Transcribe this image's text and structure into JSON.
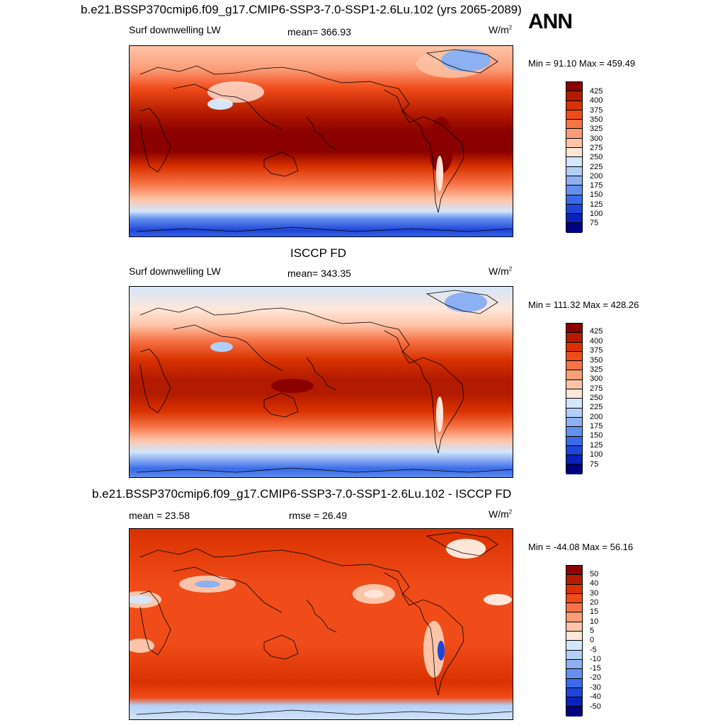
{
  "panel1": {
    "title": "b.e21.BSSP370cmip6.f09_g17.CMIP6-SSP3-7.0-SSP1-2.6Lu.102 (yrs 2065-2089)",
    "season": "ANN",
    "left": "Surf downwelling LW",
    "center": "mean= 366.93",
    "units_base": "W/m",
    "units_exp": "2",
    "minmax": "Min =  91.10 Max = 459.49",
    "colorbar_labels": [
      "425",
      "400",
      "375",
      "350",
      "325",
      "300",
      "275",
      "250",
      "225",
      "200",
      "175",
      "150",
      "125",
      "100",
      "75"
    ]
  },
  "panel2": {
    "title": "ISCCP FD",
    "left": "Surf downwelling LW",
    "center": "mean= 343.35",
    "units_base": "W/m",
    "units_exp": "2",
    "minmax": "Min = 111.32 Max = 428.26",
    "colorbar_labels": [
      "425",
      "400",
      "375",
      "350",
      "325",
      "300",
      "275",
      "250",
      "225",
      "200",
      "175",
      "150",
      "125",
      "100",
      "75"
    ]
  },
  "panel3": {
    "title": "b.e21.BSSP370cmip6.f09_g17.CMIP6-SSP3-7.0-SSP1-2.6Lu.102 - ISCCP FD",
    "left": "mean =  23.58",
    "center": "rmse =  26.49",
    "units_base": "W/m",
    "units_exp": "2",
    "minmax": "Min = -44.08 Max =  56.16",
    "colorbar_labels": [
      "50",
      "40",
      "30",
      "20",
      "15",
      "10",
      "5",
      "0",
      "-5",
      "-10",
      "-15",
      "-20",
      "-30",
      "-40",
      "-50"
    ]
  },
  "colors": {
    "scale": [
      "#8b0000",
      "#b31b00",
      "#d93200",
      "#f04c1a",
      "#f77447",
      "#fb9d78",
      "#fdc4a8",
      "#fee6d8",
      "#d4e6fb",
      "#b4cff7",
      "#8db0f2",
      "#6490ee",
      "#3a6ae8",
      "#1f45d8",
      "#0b22b8",
      "#000080"
    ]
  }
}
